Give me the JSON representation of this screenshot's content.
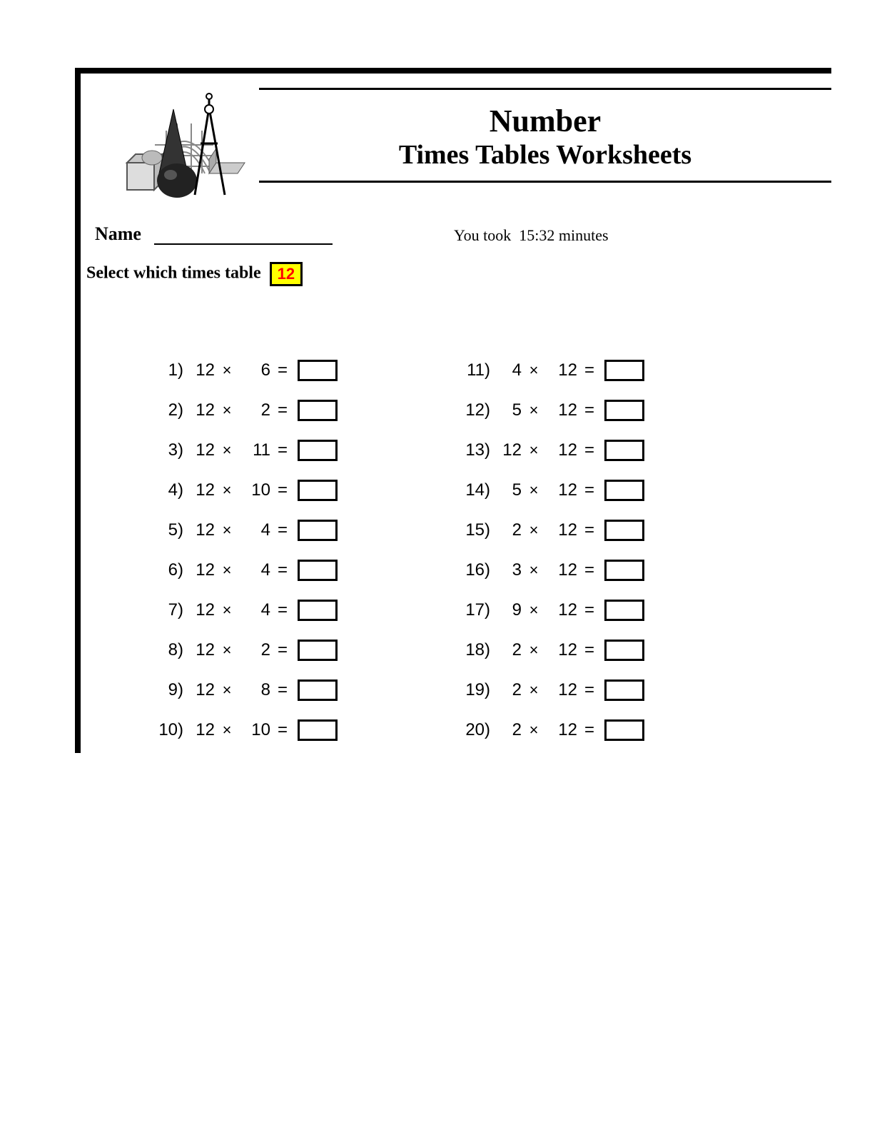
{
  "title": {
    "line1": "Number",
    "line2": "Times Tables Worksheets"
  },
  "name_label": "Name",
  "timer": {
    "prefix": "You took",
    "value": "15:32",
    "suffix": "minutes"
  },
  "select": {
    "label": "Select which times table",
    "value": "12"
  },
  "colors": {
    "select_bg": "#ffff00",
    "select_fg": "#ff0000",
    "border": "#000000",
    "page_bg": "#ffffff"
  },
  "font": {
    "title_family": "Times New Roman",
    "body_family": "Arial",
    "title1_pt": 44,
    "title2_pt": 38,
    "problem_pt": 24
  },
  "multiply_symbol": "×",
  "equals_symbol": "=",
  "problems_left": [
    {
      "n": "1)",
      "a": "12",
      "b": "6"
    },
    {
      "n": "2)",
      "a": "12",
      "b": "2"
    },
    {
      "n": "3)",
      "a": "12",
      "b": "11"
    },
    {
      "n": "4)",
      "a": "12",
      "b": "10"
    },
    {
      "n": "5)",
      "a": "12",
      "b": "4"
    },
    {
      "n": "6)",
      "a": "12",
      "b": "4"
    },
    {
      "n": "7)",
      "a": "12",
      "b": "4"
    },
    {
      "n": "8)",
      "a": "12",
      "b": "2"
    },
    {
      "n": "9)",
      "a": "12",
      "b": "8"
    },
    {
      "n": "10)",
      "a": "12",
      "b": "10"
    }
  ],
  "problems_right": [
    {
      "n": "11)",
      "a": "4",
      "b": "12"
    },
    {
      "n": "12)",
      "a": "5",
      "b": "12"
    },
    {
      "n": "13)",
      "a": "12",
      "b": "12"
    },
    {
      "n": "14)",
      "a": "5",
      "b": "12"
    },
    {
      "n": "15)",
      "a": "2",
      "b": "12"
    },
    {
      "n": "16)",
      "a": "3",
      "b": "12"
    },
    {
      "n": "17)",
      "a": "9",
      "b": "12"
    },
    {
      "n": "18)",
      "a": "2",
      "b": "12"
    },
    {
      "n": "19)",
      "a": "2",
      "b": "12"
    },
    {
      "n": "20)",
      "a": "2",
      "b": "12"
    }
  ]
}
